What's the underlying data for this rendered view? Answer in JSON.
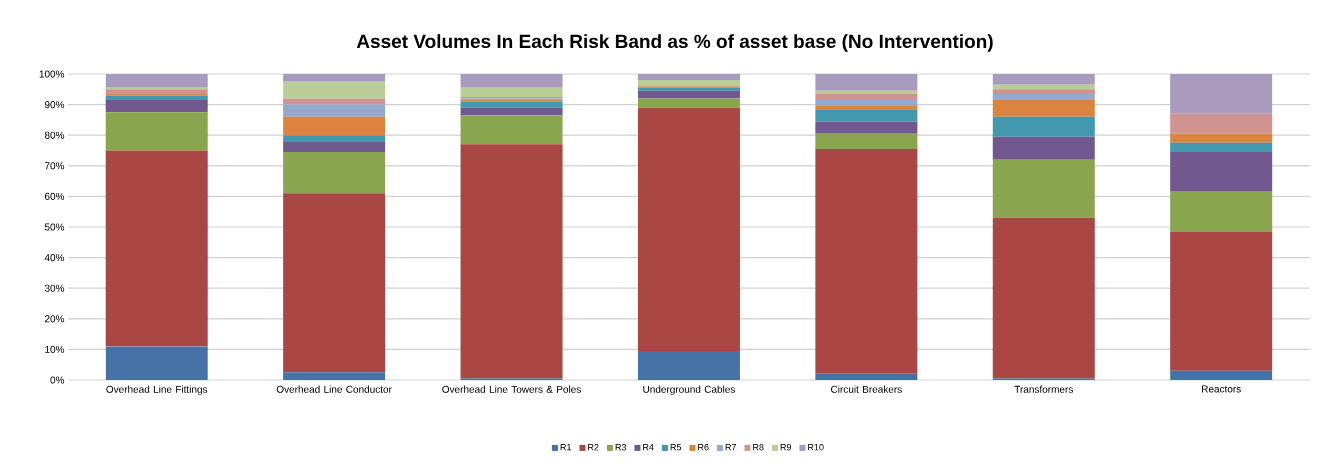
{
  "chart_data": {
    "type": "bar",
    "stacked": true,
    "title": "Asset Volumes In Each Risk Band as % of asset base (No Intervention)",
    "categories": [
      "Overhead Line Fittings",
      "Overhead Line Conductor",
      "Overhead Line Towers & Poles",
      "Underground Cables",
      "Circuit Breakers",
      "Transformers",
      "Reactors"
    ],
    "series": [
      {
        "name": "R1",
        "color": "#4572a7",
        "values": [
          11,
          2.5,
          0.5,
          9.5,
          2,
          0.5,
          3
        ]
      },
      {
        "name": "R2",
        "color": "#aa4643",
        "values": [
          64,
          58.5,
          76.5,
          79.5,
          73.5,
          52.5,
          45.5
        ]
      },
      {
        "name": "R3",
        "color": "#89a54e",
        "values": [
          12.5,
          13.5,
          9.5,
          3,
          5,
          19,
          13
        ]
      },
      {
        "name": "R4",
        "color": "#71588f",
        "values": [
          4,
          3.5,
          2.5,
          2.5,
          4,
          7.5,
          13
        ]
      },
      {
        "name": "R5",
        "color": "#4198af",
        "values": [
          1.5,
          2,
          2,
          1,
          4,
          6.5,
          3
        ]
      },
      {
        "name": "R6",
        "color": "#db843d",
        "values": [
          0.5,
          6,
          0.5,
          0.5,
          1,
          5.5,
          3
        ]
      },
      {
        "name": "R7",
        "color": "#93a9cf",
        "values": [
          0,
          4,
          0.5,
          0,
          2,
          2,
          0
        ]
      },
      {
        "name": "R8",
        "color": "#d19392",
        "values": [
          1.5,
          2,
          0.5,
          0,
          2,
          1.5,
          6.5
        ]
      },
      {
        "name": "R9",
        "color": "#b9cd96",
        "values": [
          0.5,
          5.5,
          3,
          2,
          1,
          1.5,
          0
        ]
      },
      {
        "name": "R10",
        "color": "#a99bbd",
        "values": [
          4.5,
          2.5,
          4.5,
          2,
          5.5,
          3.5,
          13
        ]
      }
    ],
    "ylim": [
      0,
      100
    ],
    "yticks": [
      {
        "value": 0,
        "label": "0%"
      },
      {
        "value": 10,
        "label": "10%"
      },
      {
        "value": 20,
        "label": "20%"
      },
      {
        "value": 30,
        "label": "30%"
      },
      {
        "value": 40,
        "label": "40%"
      },
      {
        "value": 50,
        "label": "50%"
      },
      {
        "value": 60,
        "label": "60%"
      },
      {
        "value": 70,
        "label": "70%"
      },
      {
        "value": 80,
        "label": "80%"
      },
      {
        "value": 90,
        "label": "90%"
      },
      {
        "value": 100,
        "label": "100%"
      }
    ],
    "grid": "y",
    "legend": "bottom"
  }
}
